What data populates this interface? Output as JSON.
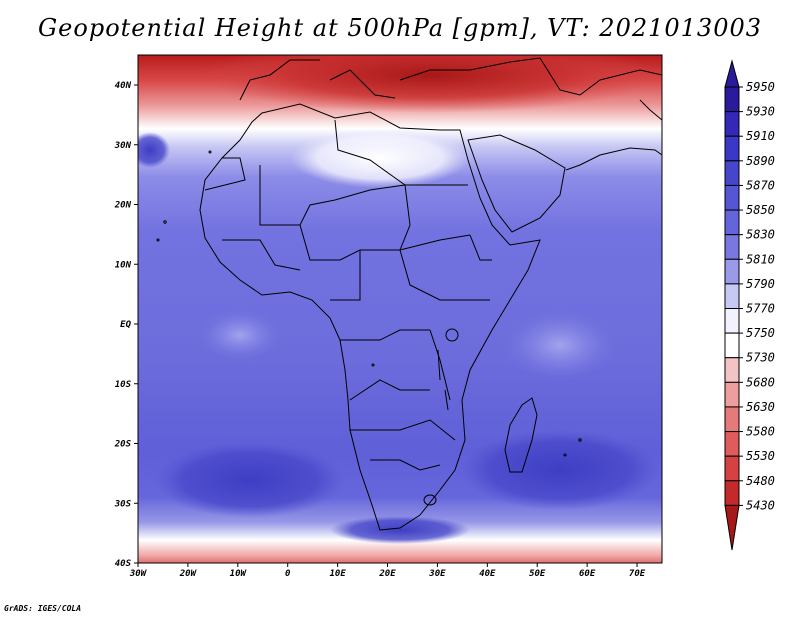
{
  "title": "Geopotential Height at 500hPa [gpm], VT: 2021013003",
  "credit": "GrADS: IGES/COLA",
  "map": {
    "lon_labels": [
      "30W",
      "20W",
      "10W",
      "0",
      "10E",
      "20E",
      "30E",
      "40E",
      "50E",
      "60E",
      "70E"
    ],
    "lat_labels": [
      "40N",
      "30N",
      "20N",
      "10N",
      "EQ",
      "10S",
      "20S",
      "30S",
      "40S"
    ]
  },
  "colorbar": {
    "labels": [
      "5950",
      "5930",
      "5910",
      "5890",
      "5870",
      "5850",
      "5830",
      "5810",
      "5790",
      "5770",
      "5750",
      "5730",
      "5680",
      "5630",
      "5580",
      "5530",
      "5480",
      "5430"
    ],
    "colors": [
      "#2a1b9c",
      "#3328b8",
      "#3b38c8",
      "#4646cc",
      "#5555d6",
      "#6464dc",
      "#7878e0",
      "#9a9aea",
      "#c8c8f4",
      "#f2f2fc",
      "#ffffff",
      "#f4c4c4",
      "#ee9e9e",
      "#e67a7a",
      "#de5c5c",
      "#d64242",
      "#c42a2a",
      "#a81818"
    ]
  }
}
